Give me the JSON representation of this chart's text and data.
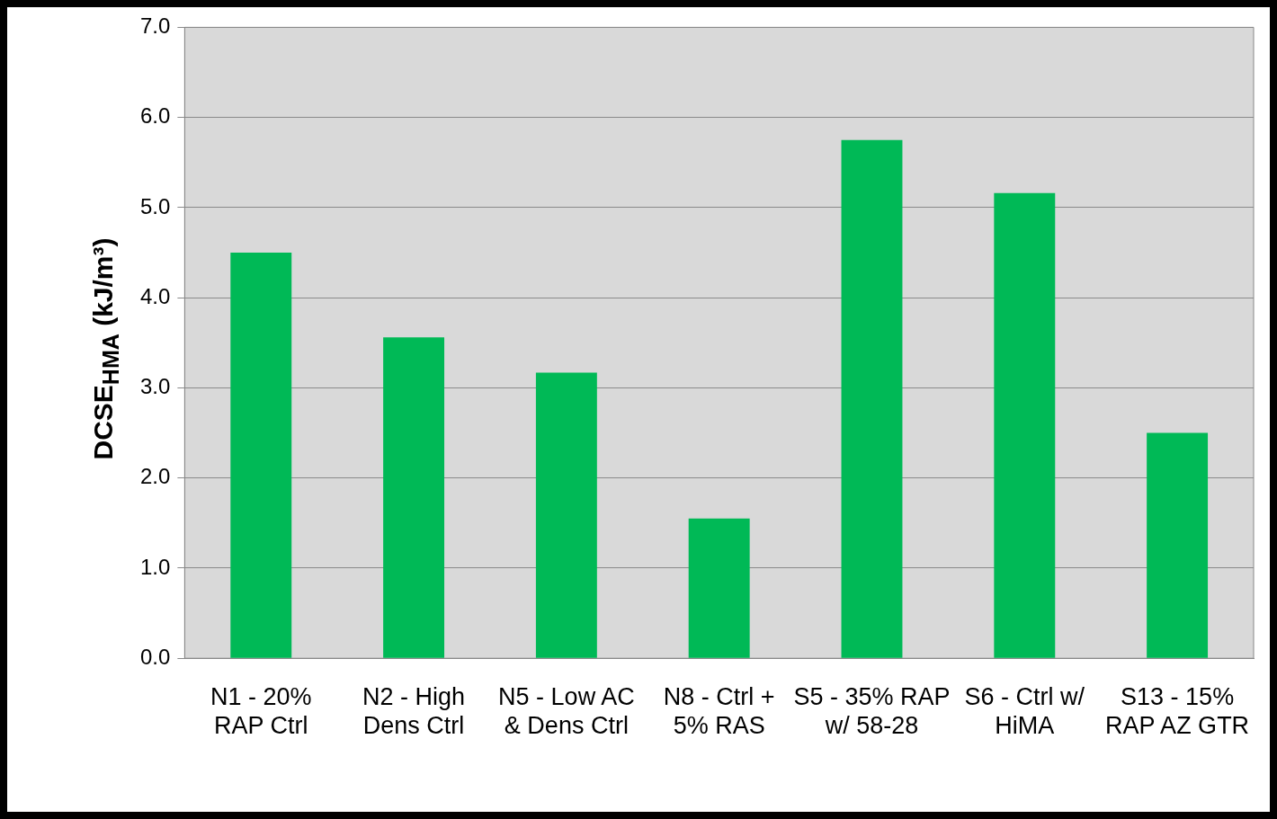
{
  "chart_data": {
    "type": "bar",
    "ylabel": "DCSE$_{HMA}$ (kJ/m³)",
    "categories": [
      "N1 - 20%\nRAP Ctrl",
      "N2 - High\nDens Ctrl",
      "N5 - Low AC\n& Dens Ctrl",
      "N8 - Ctrl +\n5% RAS",
      "S5 - 35% RAP\nw/ 58-28",
      "S6 - Ctrl w/\nHiMA",
      "S13 - 15%\nRAP AZ GTR"
    ],
    "values": [
      4.5,
      3.56,
      3.17,
      1.55,
      5.75,
      5.16,
      2.5
    ],
    "color": "#00b956",
    "ylim": [
      0,
      7
    ],
    "yticks": [
      {
        "value": 0,
        "label": "0.0"
      },
      {
        "value": 1,
        "label": "1.0"
      },
      {
        "value": 2,
        "label": "2.0"
      },
      {
        "value": 3,
        "label": "3.0"
      },
      {
        "value": 4,
        "label": "4.0"
      },
      {
        "value": 5,
        "label": "5.0"
      },
      {
        "value": 6,
        "label": "6.0"
      },
      {
        "value": 7,
        "label": "7.0"
      }
    ],
    "grid": "y",
    "legend": false
  }
}
